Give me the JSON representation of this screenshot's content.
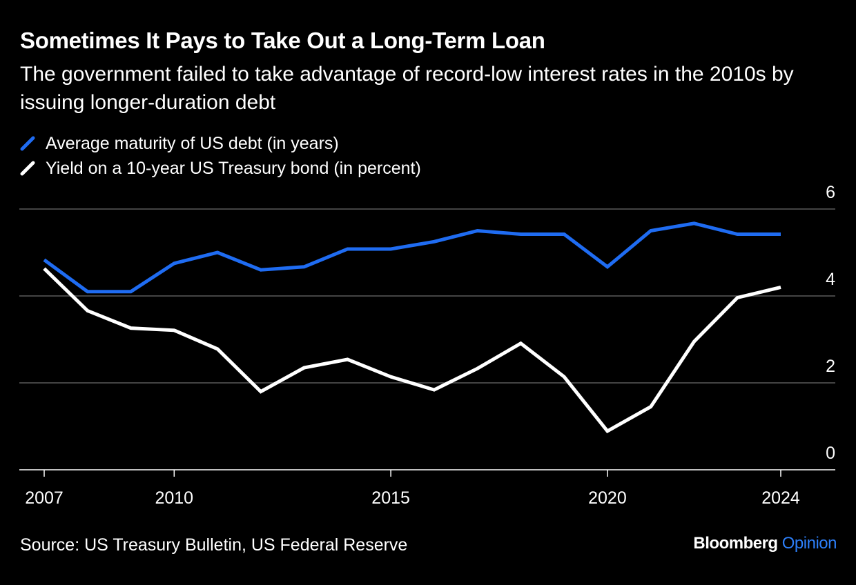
{
  "title": "Sometimes It Pays to Take Out a Long-Term Loan",
  "subtitle": "The government failed to take advantage of record-low interest rates in the 2010s by issuing longer-duration debt",
  "source": "Source: US Treasury Bulletin, US Federal Reserve",
  "brand": {
    "name": "Bloomberg",
    "section": "Opinion"
  },
  "colors": {
    "background": "#000000",
    "maturity": "#1f6cf2",
    "yield": "#ffffff",
    "grid": "#5a5a5a"
  },
  "chart_data": {
    "type": "line",
    "x": [
      2007,
      2008,
      2009,
      2010,
      2011,
      2012,
      2013,
      2014,
      2015,
      2016,
      2017,
      2018,
      2019,
      2020,
      2021,
      2022,
      2023,
      2024
    ],
    "series": [
      {
        "name": "Average maturity of US debt (in years)",
        "color": "#1f6cf2",
        "values": [
          4.83,
          4.1,
          4.1,
          4.75,
          5.0,
          4.6,
          4.67,
          5.08,
          5.08,
          5.25,
          5.5,
          5.42,
          5.42,
          4.67,
          5.5,
          5.67,
          5.42,
          5.42
        ]
      },
      {
        "name": "Yield on a 10-year US Treasury bond (in percent)",
        "color": "#ffffff",
        "values": [
          4.63,
          3.66,
          3.26,
          3.21,
          2.78,
          1.8,
          2.35,
          2.54,
          2.14,
          1.84,
          2.33,
          2.91,
          2.14,
          0.89,
          1.45,
          2.95,
          3.96,
          4.2
        ]
      }
    ],
    "xticks": [
      2007,
      2010,
      2015,
      2020,
      2024
    ],
    "xtick_labels": [
      "2007",
      "2010",
      "2015",
      "2020",
      "2024"
    ],
    "yticks": [
      0,
      2,
      4,
      6
    ],
    "ytick_labels": [
      "0",
      "2",
      "4",
      "6"
    ],
    "ylim": [
      0,
      6
    ],
    "xlim": [
      2006.5,
      2025.2
    ],
    "grid": true,
    "legend": "top-left",
    "xlabel": "",
    "ylabel": ""
  }
}
